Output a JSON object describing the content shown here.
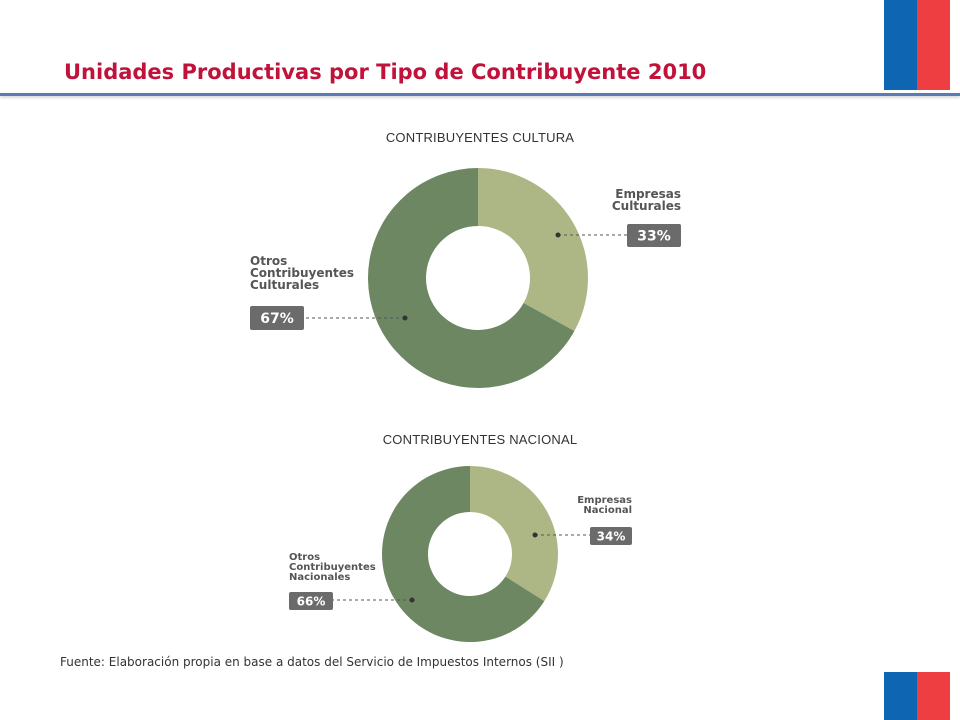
{
  "slide": {
    "title": "Unidades Productivas por Tipo de Contribuyente 2010",
    "footer": "Fuente: Elaboración propia en base a datos del Servicio de Impuestos Internos (SII )",
    "colors": {
      "title": "#c0123a",
      "flag_blue": "#0e66b2",
      "flag_red": "#ef3e42"
    }
  },
  "chart_data": [
    {
      "type": "pie",
      "title": "CONTRIBUYENTES CULTURA",
      "slices": [
        {
          "label_lines": [
            "Empresas",
            "Culturales"
          ],
          "value": 33,
          "value_label": "33%",
          "color": "#adb785"
        },
        {
          "label_lines": [
            "Otros",
            "Contribuyentes",
            "Culturales"
          ],
          "value": 67,
          "value_label": "67%",
          "color": "#6c8762"
        }
      ]
    },
    {
      "type": "pie",
      "title": "CONTRIBUYENTES NACIONAL",
      "slices": [
        {
          "label_lines": [
            "Empresas",
            "Nacional"
          ],
          "value": 34,
          "value_label": "34%",
          "color": "#adb785"
        },
        {
          "label_lines": [
            "Otros",
            "Contribuyentes",
            "Nacionales"
          ],
          "value": 66,
          "value_label": "66%",
          "color": "#6c8762"
        }
      ]
    }
  ]
}
